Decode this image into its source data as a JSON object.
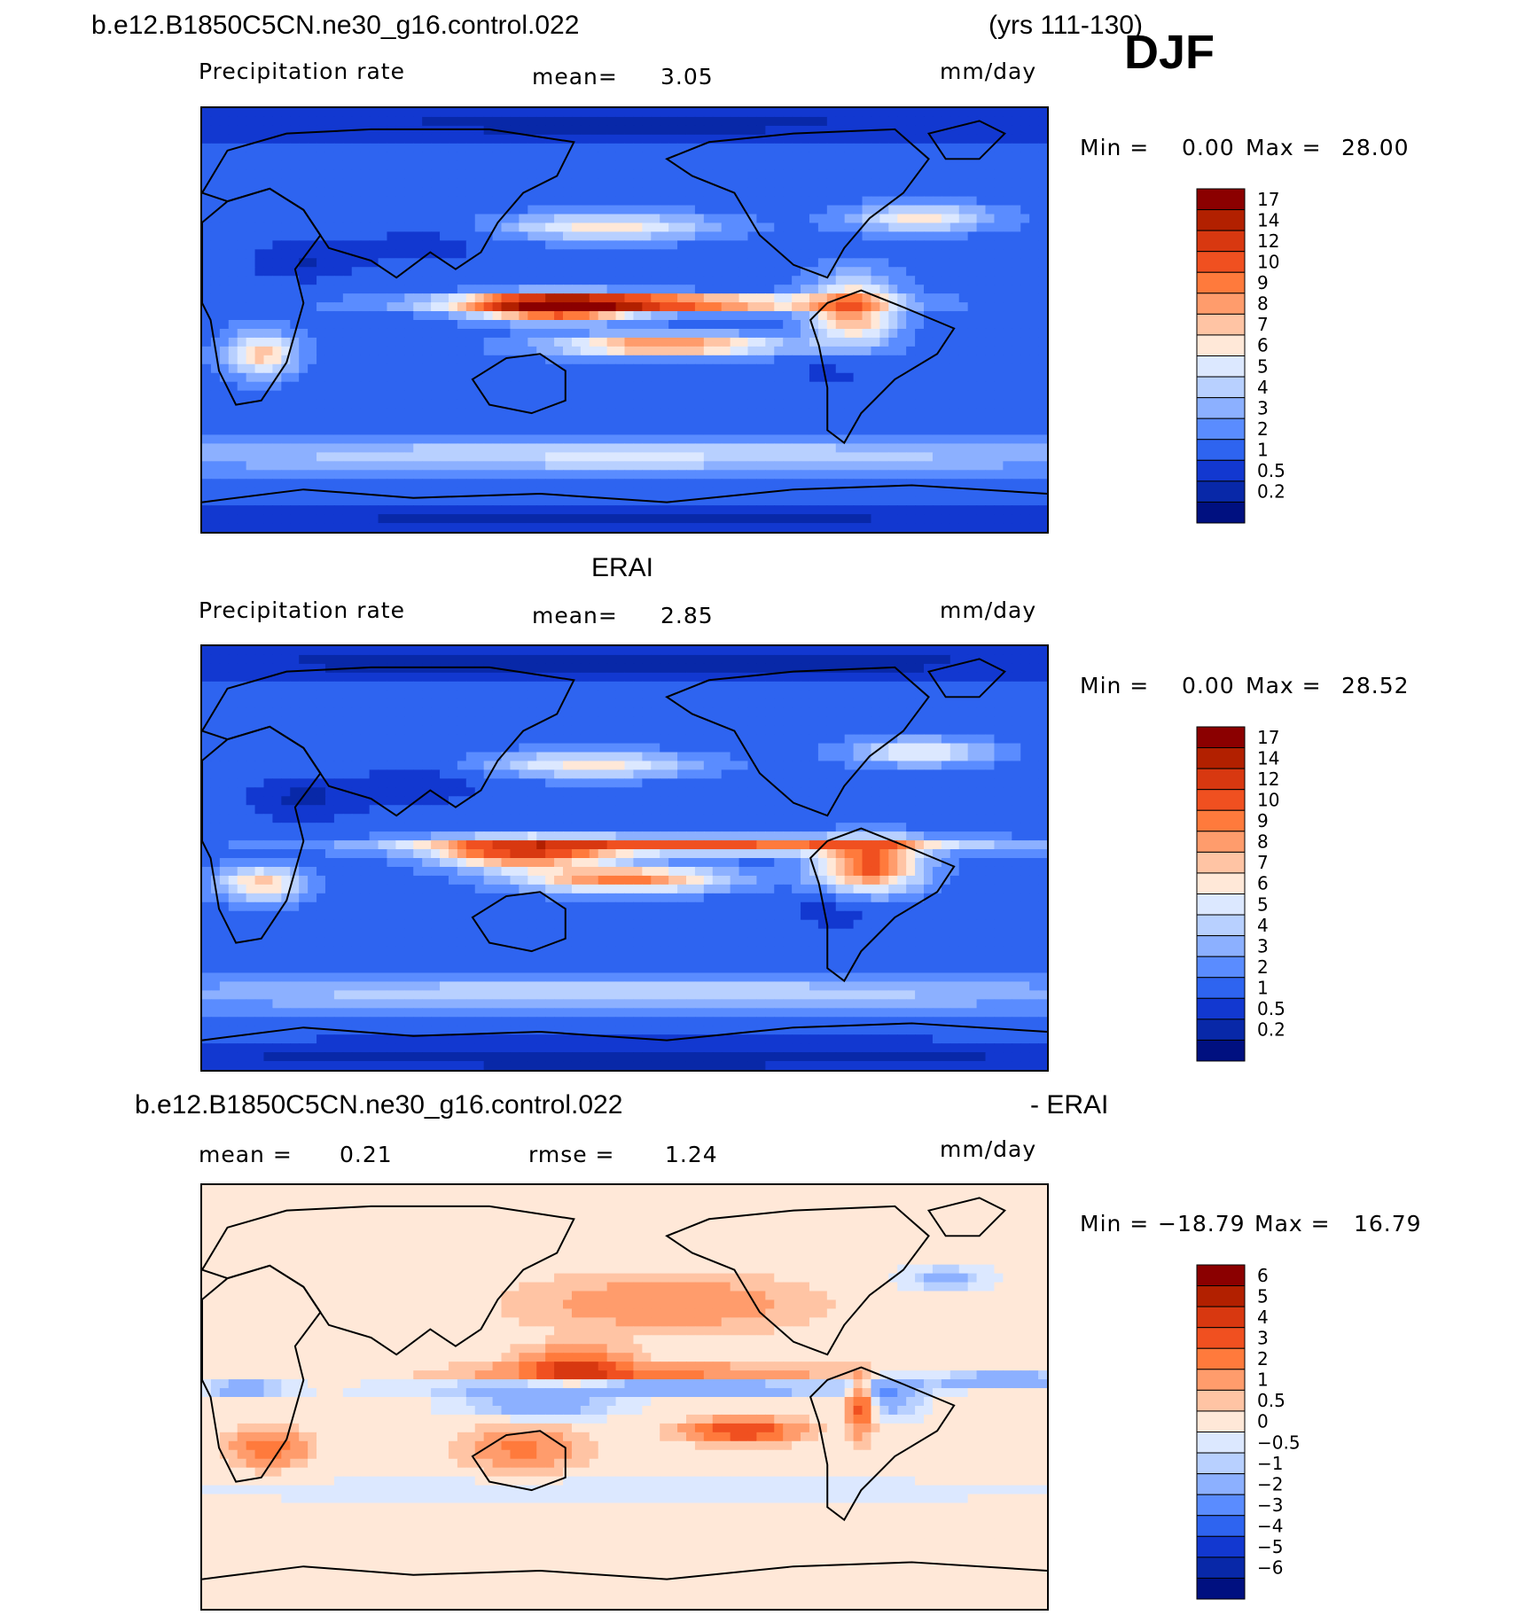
{
  "header": {
    "case_name": "b.e12.B1850C5CN.ne30_g16.control.022",
    "years": "(yrs 111-130)",
    "season": "DJF"
  },
  "panels": [
    {
      "id": "model",
      "section_title": "",
      "left_label": "Precipitation  rate",
      "mean_label": "mean=",
      "mean_value": "3.05",
      "rmse_label": "",
      "rmse_value": "",
      "units": "mm/day",
      "min_label": "Min  =",
      "min_value": "0.00",
      "max_label": "Max  =",
      "max_value": "28.00"
    },
    {
      "id": "obs",
      "section_title": "ERAI",
      "left_label": "Precipitation  rate",
      "mean_label": "mean=",
      "mean_value": "2.85",
      "rmse_label": "",
      "rmse_value": "",
      "units": "mm/day",
      "min_label": "Min  =",
      "min_value": "0.00",
      "max_label": "Max  =",
      "max_value": "28.52"
    },
    {
      "id": "diff",
      "section_title": "b.e12.B1850C5CN.ne30_g16.control.022",
      "section_suffix": "- ERAI",
      "left_label": "mean  =",
      "mean_label": "",
      "mean_value": "0.21",
      "rmse_label": "rmse  =",
      "rmse_value": "1.24",
      "units": "mm/day",
      "min_label": "Min  =",
      "min_value": "−18.79",
      "max_label": "Max  =",
      "max_value": "16.79"
    }
  ],
  "chart_data": [
    {
      "type": "heatmap",
      "title": "Precipitation rate (model)",
      "units": "mm/day",
      "mean": 3.05,
      "min": 0.0,
      "max": 28.0,
      "colorbar_levels": [
        "17",
        "14",
        "12",
        "10",
        "9",
        "8",
        "7",
        "6",
        "5",
        "4",
        "3",
        "2",
        "1",
        "0.5",
        "0.2"
      ],
      "colorbar_colors": [
        "#8B0000",
        "#B22000",
        "#D83810",
        "#F05020",
        "#FF7A3C",
        "#FF9C6C",
        "#FFC4A4",
        "#FFE8D8",
        "#DCE8FF",
        "#B8D0FF",
        "#8CB0FF",
        "#5A8CFF",
        "#2E64F0",
        "#1238D0",
        "#0828A8",
        "#001080"
      ]
    },
    {
      "type": "heatmap",
      "title": "Precipitation rate (ERAI)",
      "units": "mm/day",
      "mean": 2.85,
      "min": 0.0,
      "max": 28.52,
      "colorbar_levels": [
        "17",
        "14",
        "12",
        "10",
        "9",
        "8",
        "7",
        "6",
        "5",
        "4",
        "3",
        "2",
        "1",
        "0.5",
        "0.2"
      ],
      "colorbar_colors": [
        "#8B0000",
        "#B22000",
        "#D83810",
        "#F05020",
        "#FF7A3C",
        "#FF9C6C",
        "#FFC4A4",
        "#FFE8D8",
        "#DCE8FF",
        "#B8D0FF",
        "#8CB0FF",
        "#5A8CFF",
        "#2E64F0",
        "#1238D0",
        "#0828A8",
        "#001080"
      ]
    },
    {
      "type": "heatmap",
      "title": "Model - ERAI difference",
      "units": "mm/day",
      "mean": 0.21,
      "rmse": 1.24,
      "min": -18.79,
      "max": 16.79,
      "colorbar_levels": [
        "6",
        "5",
        "4",
        "3",
        "2",
        "1",
        "0.5",
        "0",
        "−0.5",
        "−1",
        "−2",
        "−3",
        "−4",
        "−5",
        "−6"
      ],
      "colorbar_colors": [
        "#8B0000",
        "#B22000",
        "#D83810",
        "#F05020",
        "#FF7A3C",
        "#FF9C6C",
        "#FFC4A4",
        "#FFE8D8",
        "#DCE8FF",
        "#B8D0FF",
        "#8CB0FF",
        "#5A8CFF",
        "#2E64F0",
        "#1238D0",
        "#0828A8",
        "#001080"
      ]
    }
  ]
}
